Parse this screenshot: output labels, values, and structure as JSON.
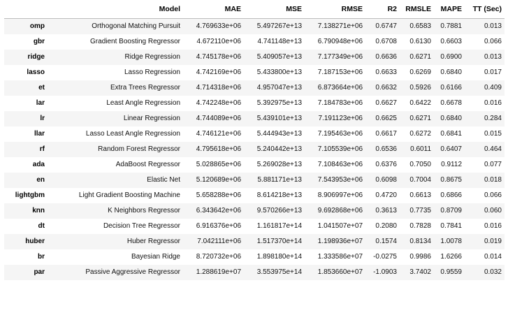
{
  "table": {
    "columns": [
      "Model",
      "MAE",
      "MSE",
      "RMSE",
      "R2",
      "RMSLE",
      "MAPE",
      "TT (Sec)"
    ],
    "rows": [
      {
        "key": "omp",
        "model": "Orthogonal Matching Pursuit",
        "mae": "4.769633e+06",
        "mse": "5.497267e+13",
        "rmse": "7.138271e+06",
        "r2": "0.6747",
        "rmsle": "0.6583",
        "mape": "0.7881",
        "tt": "0.013"
      },
      {
        "key": "gbr",
        "model": "Gradient Boosting Regressor",
        "mae": "4.672110e+06",
        "mse": "4.741148e+13",
        "rmse": "6.790948e+06",
        "r2": "0.6708",
        "rmsle": "0.6130",
        "mape": "0.6603",
        "tt": "0.066"
      },
      {
        "key": "ridge",
        "model": "Ridge Regression",
        "mae": "4.745178e+06",
        "mse": "5.409057e+13",
        "rmse": "7.177349e+06",
        "r2": "0.6636",
        "rmsle": "0.6271",
        "mape": "0.6900",
        "tt": "0.013"
      },
      {
        "key": "lasso",
        "model": "Lasso Regression",
        "mae": "4.742169e+06",
        "mse": "5.433800e+13",
        "rmse": "7.187153e+06",
        "r2": "0.6633",
        "rmsle": "0.6269",
        "mape": "0.6840",
        "tt": "0.017"
      },
      {
        "key": "et",
        "model": "Extra Trees Regressor",
        "mae": "4.714318e+06",
        "mse": "4.957047e+13",
        "rmse": "6.873664e+06",
        "r2": "0.6632",
        "rmsle": "0.5926",
        "mape": "0.6166",
        "tt": "0.409"
      },
      {
        "key": "lar",
        "model": "Least Angle Regression",
        "mae": "4.742248e+06",
        "mse": "5.392975e+13",
        "rmse": "7.184783e+06",
        "r2": "0.6627",
        "rmsle": "0.6422",
        "mape": "0.6678",
        "tt": "0.016"
      },
      {
        "key": "lr",
        "model": "Linear Regression",
        "mae": "4.744089e+06",
        "mse": "5.439101e+13",
        "rmse": "7.191123e+06",
        "r2": "0.6625",
        "rmsle": "0.6271",
        "mape": "0.6840",
        "tt": "0.284"
      },
      {
        "key": "llar",
        "model": "Lasso Least Angle Regression",
        "mae": "4.746121e+06",
        "mse": "5.444943e+13",
        "rmse": "7.195463e+06",
        "r2": "0.6617",
        "rmsle": "0.6272",
        "mape": "0.6841",
        "tt": "0.015"
      },
      {
        "key": "rf",
        "model": "Random Forest Regressor",
        "mae": "4.795618e+06",
        "mse": "5.240442e+13",
        "rmse": "7.105539e+06",
        "r2": "0.6536",
        "rmsle": "0.6011",
        "mape": "0.6407",
        "tt": "0.464"
      },
      {
        "key": "ada",
        "model": "AdaBoost Regressor",
        "mae": "5.028865e+06",
        "mse": "5.269028e+13",
        "rmse": "7.108463e+06",
        "r2": "0.6376",
        "rmsle": "0.7050",
        "mape": "0.9112",
        "tt": "0.077"
      },
      {
        "key": "en",
        "model": "Elastic Net",
        "mae": "5.120689e+06",
        "mse": "5.881171e+13",
        "rmse": "7.543953e+06",
        "r2": "0.6098",
        "rmsle": "0.7004",
        "mape": "0.8675",
        "tt": "0.018"
      },
      {
        "key": "lightgbm",
        "model": "Light Gradient Boosting Machine",
        "mae": "5.658288e+06",
        "mse": "8.614218e+13",
        "rmse": "8.906997e+06",
        "r2": "0.4720",
        "rmsle": "0.6613",
        "mape": "0.6866",
        "tt": "0.066"
      },
      {
        "key": "knn",
        "model": "K Neighbors Regressor",
        "mae": "6.343642e+06",
        "mse": "9.570266e+13",
        "rmse": "9.692868e+06",
        "r2": "0.3613",
        "rmsle": "0.7735",
        "mape": "0.8709",
        "tt": "0.060"
      },
      {
        "key": "dt",
        "model": "Decision Tree Regressor",
        "mae": "6.916376e+06",
        "mse": "1.161817e+14",
        "rmse": "1.041507e+07",
        "r2": "0.2080",
        "rmsle": "0.7828",
        "mape": "0.7841",
        "tt": "0.016"
      },
      {
        "key": "huber",
        "model": "Huber Regressor",
        "mae": "7.042111e+06",
        "mse": "1.517370e+14",
        "rmse": "1.198936e+07",
        "r2": "0.1574",
        "rmsle": "0.8134",
        "mape": "1.0078",
        "tt": "0.019"
      },
      {
        "key": "br",
        "model": "Bayesian Ridge",
        "mae": "8.720732e+06",
        "mse": "1.898180e+14",
        "rmse": "1.333586e+07",
        "r2": "-0.0275",
        "rmsle": "0.9986",
        "mape": "1.6266",
        "tt": "0.014"
      },
      {
        "key": "par",
        "model": "Passive Aggressive Regressor",
        "mae": "1.288619e+07",
        "mse": "3.553975e+14",
        "rmse": "1.853660e+07",
        "r2": "-1.0903",
        "rmsle": "3.7402",
        "mape": "0.9559",
        "tt": "0.032"
      }
    ]
  }
}
